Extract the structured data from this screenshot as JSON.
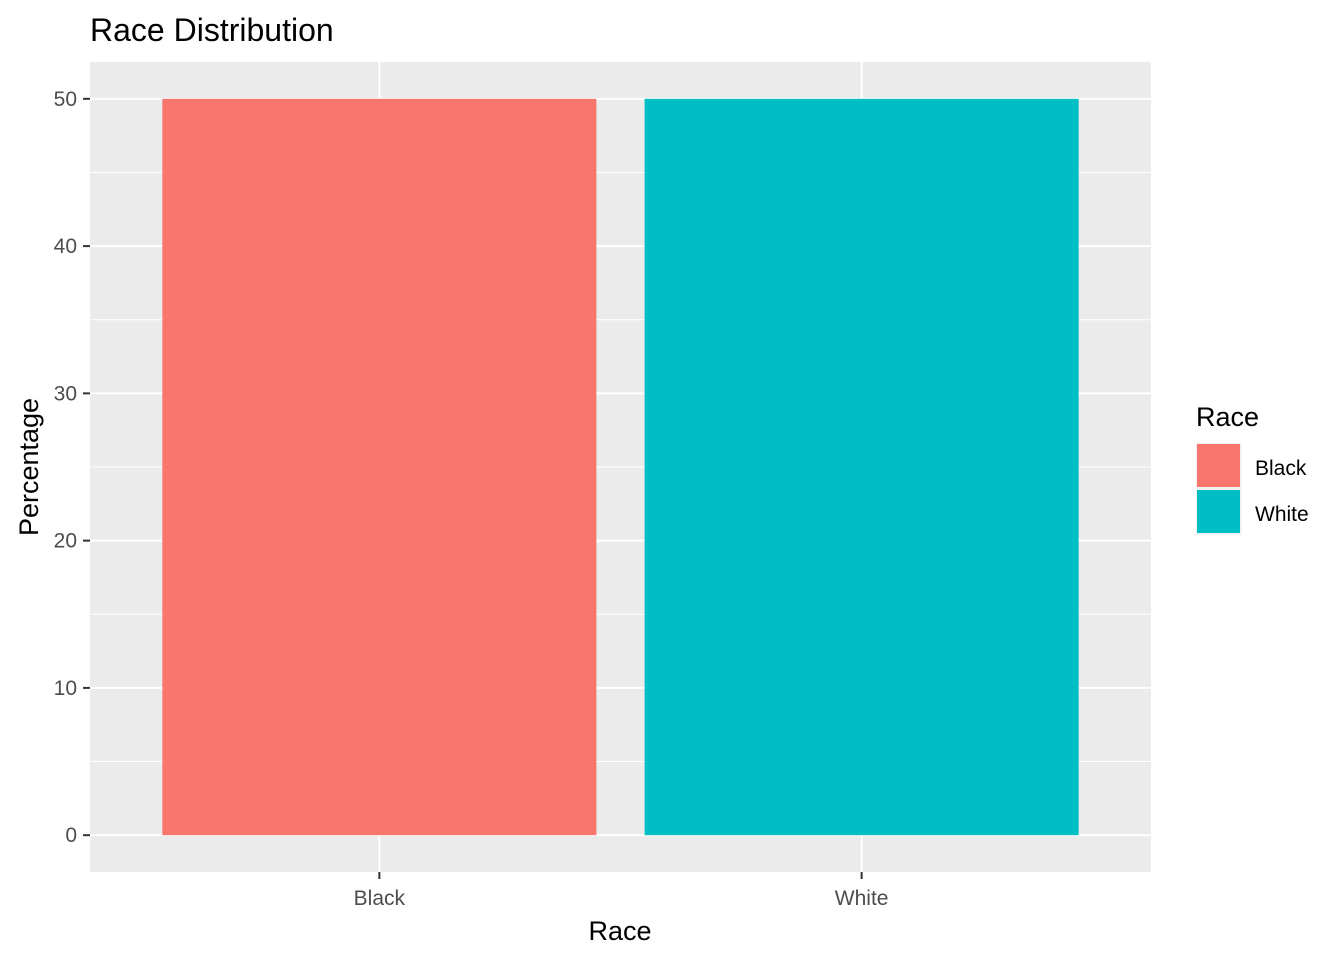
{
  "chart_data": {
    "type": "bar",
    "title": "Race Distribution",
    "xlabel": "Race",
    "ylabel": "Percentage",
    "categories": [
      "Black",
      "White"
    ],
    "values": [
      50,
      50
    ],
    "colors": [
      "#F8766D",
      "#00BFC4"
    ],
    "ylim": [
      -2.5,
      52.5
    ],
    "yticks": [
      0,
      10,
      20,
      30,
      40,
      50
    ],
    "grid": true,
    "panel_background": "#EBEBEB",
    "legend": {
      "title": "Race",
      "position": "right",
      "items": [
        {
          "label": "Black",
          "color": "#F8766D"
        },
        {
          "label": "White",
          "color": "#00BFC4"
        }
      ]
    }
  }
}
